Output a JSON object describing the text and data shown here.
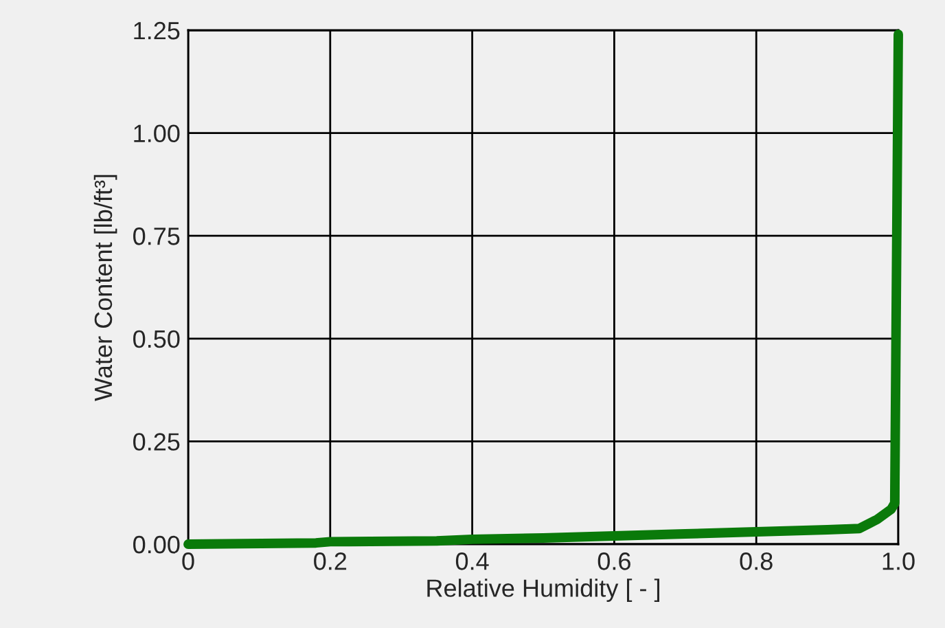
{
  "chart_data": {
    "type": "line",
    "xlabel": "Relative Humidity [ - ]",
    "ylabel": "Water Content [lb/ft³]",
    "x": [
      0,
      0.18,
      0.2,
      0.35,
      0.4,
      0.5,
      0.6,
      0.7,
      0.8,
      0.9,
      0.945,
      0.97,
      0.99,
      0.995,
      1.0
    ],
    "series": [
      {
        "color": "#0a7a0a",
        "values": [
          0,
          0.003,
          0.006,
          0.008,
          0.012,
          0.015,
          0.02,
          0.025,
          0.03,
          0.035,
          0.038,
          0.06,
          0.085,
          0.1,
          1.24
        ]
      }
    ],
    "xlim": [
      0,
      1
    ],
    "ylim": [
      0,
      1.25
    ],
    "xticks": [
      0,
      {
        "value": 0.2,
        "label": "0.2"
      },
      {
        "value": 0.4,
        "label": "0.4"
      },
      {
        "value": 0.6,
        "label": "0.6"
      },
      {
        "value": 0.8,
        "label": "0.8"
      },
      {
        "value": 1.0,
        "label": "1.0"
      }
    ],
    "yticks": [
      {
        "value": 0,
        "label": "0.00"
      },
      {
        "value": 0.25,
        "label": "0.25"
      },
      {
        "value": 0.5,
        "label": "0.50"
      },
      {
        "value": 0.75,
        "label": "0.75"
      },
      {
        "value": 1.0,
        "label": "1.00"
      },
      {
        "value": 1.25,
        "label": "1.25"
      }
    ],
    "grid": true,
    "legend": false,
    "marker": "none",
    "line_style": "solid"
  }
}
